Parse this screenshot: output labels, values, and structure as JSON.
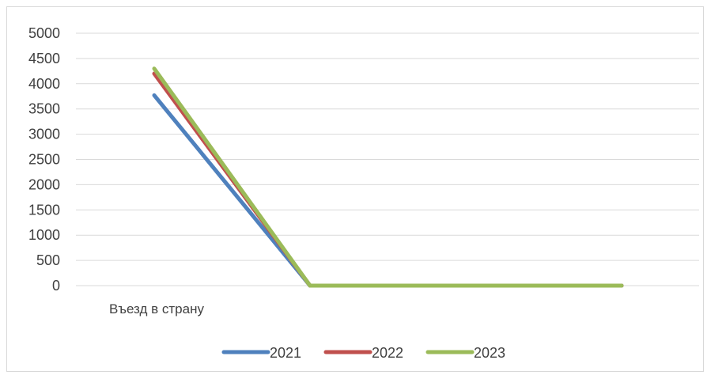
{
  "chart_data": {
    "type": "line",
    "categories": [
      "Въезд в страну",
      "",
      "",
      ""
    ],
    "ylim": [
      0,
      5000
    ],
    "yticks": [
      0,
      500,
      1000,
      1500,
      2000,
      2500,
      3000,
      3500,
      4000,
      4500,
      5000
    ],
    "grid": true,
    "legend": "bottom",
    "series": [
      {
        "name": "2021",
        "color": "#4f81bd",
        "values": [
          3770,
          0,
          0,
          0
        ]
      },
      {
        "name": "2022",
        "color": "#c0504d",
        "values": [
          4200,
          0,
          0,
          0
        ]
      },
      {
        "name": "2023",
        "color": "#9bbb59",
        "values": [
          4300,
          0,
          0,
          0
        ]
      }
    ]
  }
}
